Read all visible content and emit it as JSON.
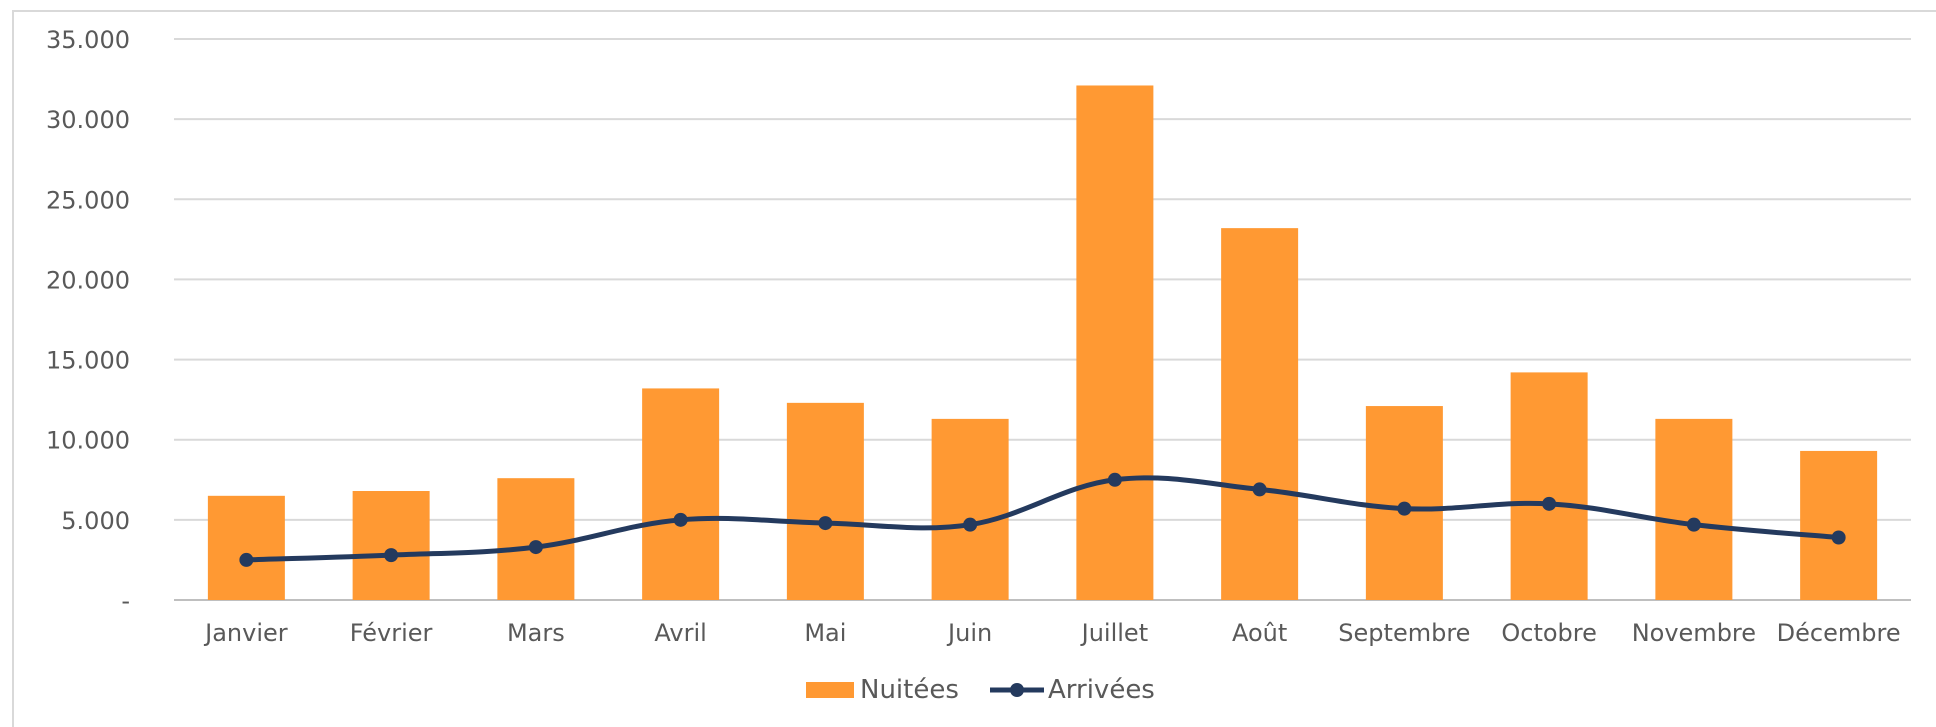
{
  "chart_data": {
    "type": "bar",
    "categories": [
      "Janvier",
      "Février",
      "Mars",
      "Avril",
      "Mai",
      "Juin",
      "Juillet",
      "Août",
      "Septembre",
      "Octobre",
      "Novembre",
      "Décembre"
    ],
    "series": [
      {
        "name": "Nuitées",
        "type": "bar",
        "color": "#ff9933",
        "values": [
          6500,
          6800,
          7600,
          13200,
          12300,
          11300,
          32100,
          23200,
          12100,
          14200,
          11300,
          9300
        ]
      },
      {
        "name": "Arrivées",
        "type": "line",
        "color": "#243a5e",
        "values": [
          2500,
          2800,
          3300,
          5000,
          4800,
          4700,
          7500,
          6900,
          5700,
          6000,
          4700,
          3900
        ]
      }
    ],
    "yticks": [
      "-",
      "5.000",
      "10.000",
      "15.000",
      "20.000",
      "25.000",
      "30.000",
      "35.000"
    ],
    "ylim": [
      0,
      35000
    ],
    "grid": true,
    "legend_position": "bottom"
  }
}
